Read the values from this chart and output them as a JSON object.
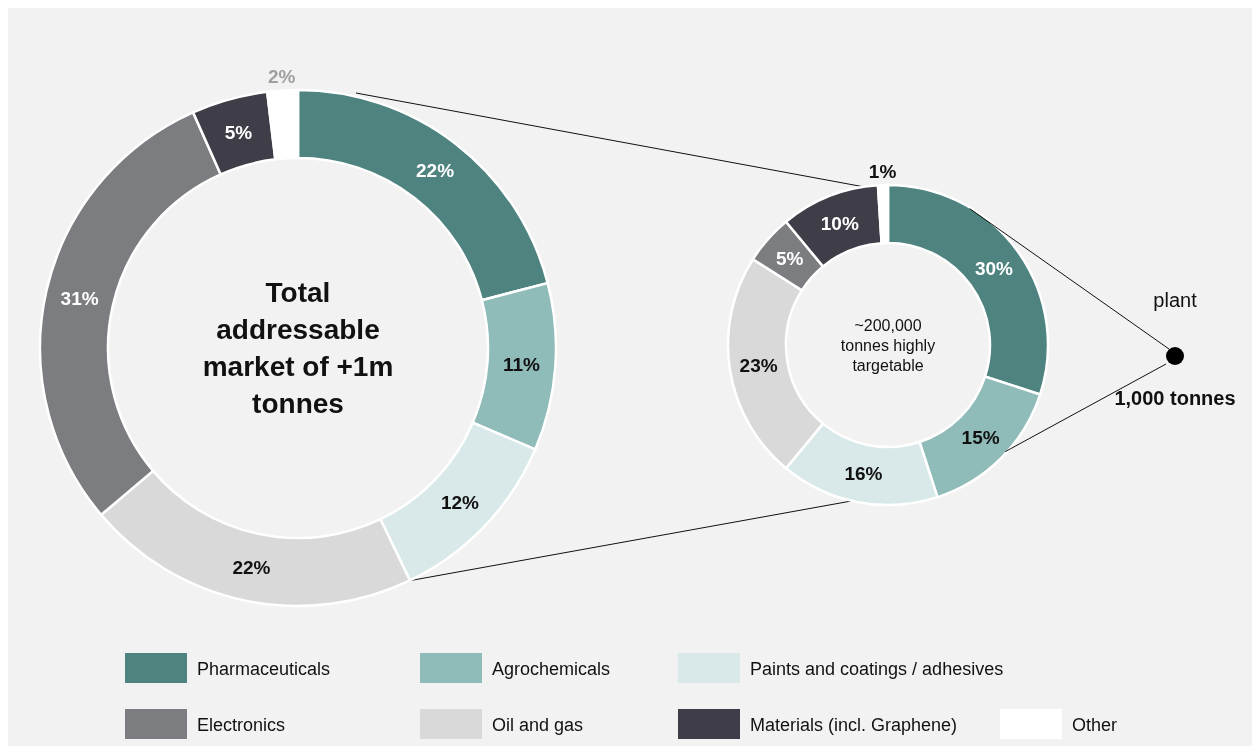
{
  "chart_data": [
    {
      "type": "donut",
      "title": "Total addressable market of +1m tonnes",
      "categories": [
        "Pharmaceuticals",
        "Agrochemicals",
        "Paints and coatings / adhesives",
        "Oil and gas",
        "Electronics",
        "Materials (incl. Graphene)",
        "Other"
      ],
      "values": [
        22,
        11,
        12,
        22,
        31,
        5,
        2
      ],
      "value_labels": [
        "22%",
        "11%",
        "12%",
        "22%",
        "31%",
        "5%",
        "2%"
      ],
      "colors": [
        "#4e8380",
        "#8fbbb8",
        "#d9e9e9",
        "#d9d9d9",
        "#7c7d80",
        "#3f3e48",
        "#ffffff"
      ],
      "legend": "bottom"
    },
    {
      "type": "donut",
      "title": "~200,000 tonnes highly targetable",
      "categories": [
        null,
        null,
        null,
        null,
        null,
        null,
        null
      ],
      "values": [
        30,
        15,
        16,
        23,
        5,
        10,
        1
      ],
      "value_labels": [
        "30%",
        "15%",
        "16%",
        "23%",
        "5%",
        "10%",
        "1%"
      ],
      "colors": [
        "#4e8380",
        "#8fbbb8",
        "#d9e9e9",
        "#d9d9d9",
        "#7c7d80",
        "#3f3e48",
        "#ffffff"
      ],
      "annotations": [
        "plant",
        "1,000 tonnes"
      ]
    }
  ]
}
